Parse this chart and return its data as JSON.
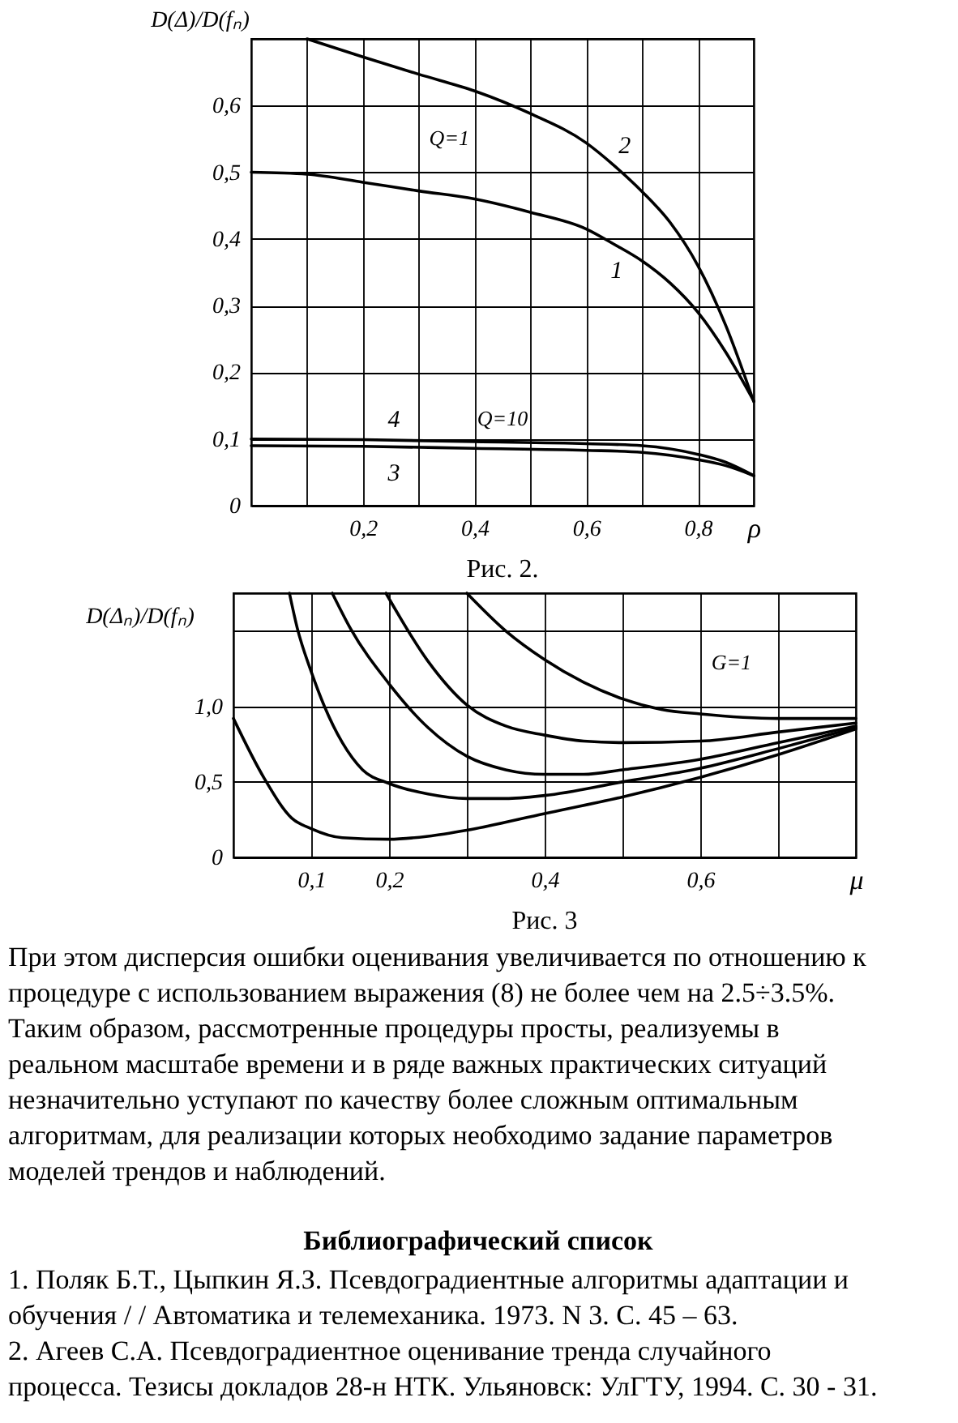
{
  "chart_data": [
    {
      "type": "line",
      "title": "Рис. 2.",
      "ylabel": "D(Δ)/D(fₙ)",
      "xlabel": "ρ",
      "xlim": [
        0,
        0.9
      ],
      "ylim": [
        0,
        0.7
      ],
      "xticks": [
        {
          "value": 0.1,
          "label": null
        },
        {
          "value": 0.2,
          "label": "0,2"
        },
        {
          "value": 0.3,
          "label": null
        },
        {
          "value": 0.4,
          "label": "0,4"
        },
        {
          "value": 0.5,
          "label": null
        },
        {
          "value": 0.6,
          "label": "0,6"
        },
        {
          "value": 0.7,
          "label": null
        },
        {
          "value": 0.8,
          "label": "0,8"
        }
      ],
      "yticks": [
        0,
        {
          "value": 0.1,
          "label": "0,1"
        },
        {
          "value": 0.2,
          "label": "0,2"
        },
        {
          "value": 0.3,
          "label": "0,3"
        },
        {
          "value": 0.4,
          "label": "0,4"
        },
        {
          "value": 0.5,
          "label": "0,5"
        },
        {
          "value": 0.6,
          "label": "0,6"
        }
      ],
      "grid": true,
      "series": [
        {
          "name": "1",
          "color": "#000000",
          "line_style": "solid",
          "x": [
            0,
            0.1,
            0.2,
            0.3,
            0.4,
            0.5,
            0.6,
            0.65,
            0.7,
            0.75,
            0.8,
            0.85,
            0.9
          ],
          "values": [
            0.5,
            0.497,
            0.485,
            0.472,
            0.46,
            0.44,
            0.415,
            0.392,
            0.367,
            0.334,
            0.29,
            0.23,
            0.157
          ]
        },
        {
          "name": "2",
          "color": "#000000",
          "line_style": "solid",
          "x": [
            0.1,
            0.2,
            0.3,
            0.4,
            0.5,
            0.6,
            0.65,
            0.7,
            0.75,
            0.8,
            0.85,
            0.9
          ],
          "values": [
            0.7,
            0.673,
            0.647,
            0.622,
            0.588,
            0.544,
            0.51,
            0.471,
            0.425,
            0.36,
            0.27,
            0.156
          ]
        },
        {
          "name": "3",
          "color": "#000000",
          "line_style": "solid",
          "x": [
            0,
            0.2,
            0.4,
            0.6,
            0.7,
            0.8,
            0.85,
            0.9
          ],
          "values": [
            0.09,
            0.089,
            0.086,
            0.083,
            0.08,
            0.069,
            0.06,
            0.045
          ]
        },
        {
          "name": "4",
          "color": "#000000",
          "line_style": "solid",
          "x": [
            0,
            0.2,
            0.4,
            0.6,
            0.7,
            0.8,
            0.85,
            0.9
          ],
          "values": [
            0.1,
            0.099,
            0.096,
            0.093,
            0.09,
            0.077,
            0.065,
            0.045
          ]
        }
      ],
      "annotations": [
        "Q=1",
        "Q=10"
      ]
    },
    {
      "type": "line",
      "title": "Рис. 3",
      "ylabel": "D(Δₙ)/D(fₙ)",
      "xlabel": "μ",
      "xlim": [
        0,
        0.8
      ],
      "ylim": [
        0,
        1.75
      ],
      "xticks": [
        {
          "value": 0.1,
          "label": "0,1"
        },
        {
          "value": 0.2,
          "label": "0,2"
        },
        {
          "value": 0.3,
          "label": null
        },
        {
          "value": 0.4,
          "label": "0,4"
        },
        {
          "value": 0.5,
          "label": null
        },
        {
          "value": 0.6,
          "label": "0,6"
        },
        {
          "value": 0.7,
          "label": null
        }
      ],
      "yticks": [
        0,
        {
          "value": 0.5,
          "label": "0,5"
        },
        {
          "value": 1.0,
          "label": "1,0"
        },
        {
          "value": 1.5,
          "label": null
        }
      ],
      "grid": true,
      "series": [
        {
          "color": "#000000",
          "line_style": "solid",
          "x": [
            0,
            0.04,
            0.075,
            0.1,
            0.14,
            0.2,
            0.25,
            0.3,
            0.4,
            0.5,
            0.6,
            0.7,
            0.8
          ],
          "values": [
            0.92,
            0.52,
            0.26,
            0.19,
            0.13,
            0.12,
            0.14,
            0.18,
            0.29,
            0.4,
            0.53,
            0.68,
            0.85
          ]
        },
        {
          "color": "#000000",
          "line_style": "solid",
          "x": [
            0.072,
            0.082,
            0.1,
            0.117,
            0.14,
            0.166,
            0.2,
            0.25,
            0.3,
            0.35,
            0.4,
            0.5,
            0.6,
            0.7,
            0.8
          ],
          "values": [
            1.75,
            1.52,
            1.23,
            1.0,
            0.76,
            0.58,
            0.49,
            0.42,
            0.39,
            0.39,
            0.41,
            0.5,
            0.59,
            0.72,
            0.86
          ]
        },
        {
          "color": "#000000",
          "line_style": "solid",
          "x": [
            0.127,
            0.15,
            0.2,
            0.25,
            0.3,
            0.35,
            0.4,
            0.45,
            0.5,
            0.6,
            0.7,
            0.8
          ],
          "values": [
            1.75,
            1.52,
            1.15,
            0.86,
            0.67,
            0.58,
            0.55,
            0.55,
            0.58,
            0.65,
            0.76,
            0.87
          ]
        },
        {
          "color": "#000000",
          "line_style": "solid",
          "x": [
            0.196,
            0.25,
            0.3,
            0.35,
            0.4,
            0.45,
            0.5,
            0.6,
            0.7,
            0.8
          ],
          "values": [
            1.75,
            1.3,
            1.01,
            0.87,
            0.81,
            0.77,
            0.76,
            0.77,
            0.83,
            0.89
          ]
        },
        {
          "color": "#000000",
          "line_style": "solid",
          "x": [
            0.3,
            0.35,
            0.4,
            0.45,
            0.5,
            0.55,
            0.6,
            0.7,
            0.8
          ],
          "values": [
            1.75,
            1.5,
            1.31,
            1.16,
            1.05,
            0.98,
            0.95,
            0.92,
            0.92
          ]
        }
      ],
      "annotations": [
        "G=1"
      ]
    },
    {
      "type": "other",
      "annotations": [
        "При этом дисперсия ошибки оценивания увеличивается по отношению к процедуре с использованием выражения (8) не более чем на 2.5÷3.5%.",
        "Таким образом, рассмотренные процедуры просты, реализуемы в реальном масштабе времени и в ряде важных практических ситуаций незначительно уступают по качеству более сложным оптимальным алгоритмам, для реализации которых необходимо задание параметров моделей трендов и наблюдений."
      ]
    },
    {
      "type": "other",
      "title": "Библиографический список",
      "annotations": [
        "1. Поляк Б.Т., Цыпкин Я.З. Псевдоградиентные алгоритмы адаптации и обучения / / Автоматика и телемеханика. 1973. N 3. С. 45 – 63.",
        "2. Агеев С.А. Псевдоградиентное оценивание тренда случайного процесса. Тезисы докладов 28-н НТК. Ульяновск: УлГТУ, 1994. С. 30 - 31."
      ]
    }
  ]
}
